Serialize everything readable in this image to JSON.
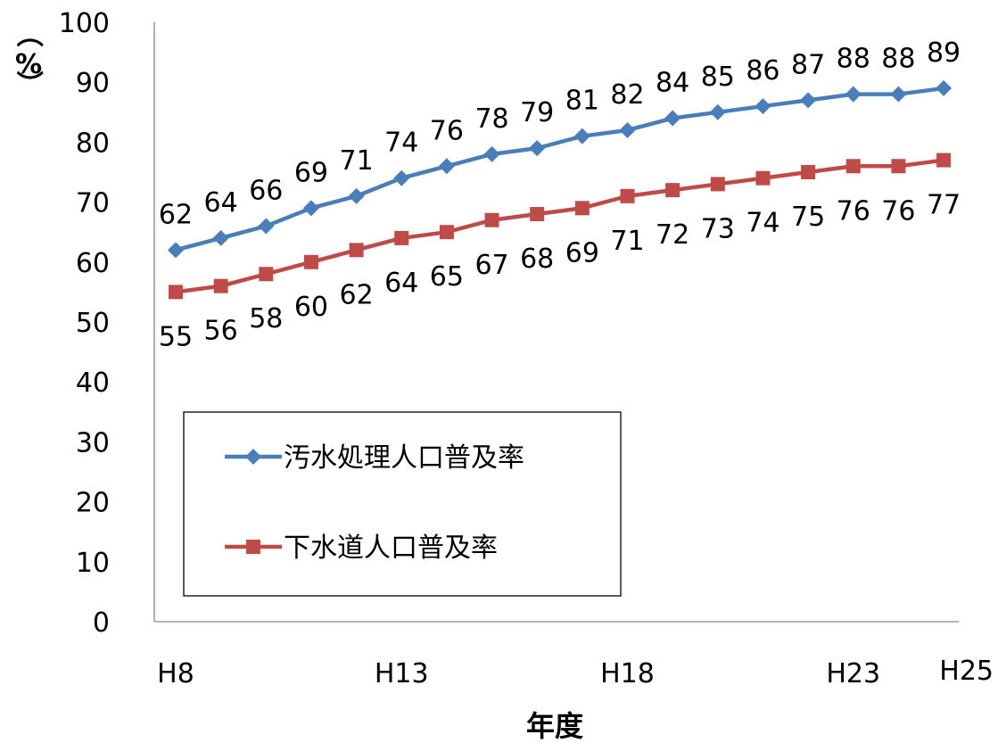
{
  "chart_data": {
    "type": "line",
    "categories": [
      "H8",
      "H9",
      "H10",
      "H11",
      "H12",
      "H13",
      "H14",
      "H15",
      "H16",
      "H17",
      "H18",
      "H19",
      "H20",
      "H21",
      "H22",
      "H23",
      "H24",
      "H25"
    ],
    "x_tick_labels": [
      "H8",
      "H13",
      "H18",
      "H23",
      "H25"
    ],
    "series": [
      {
        "name": "汚水処理人口普及率",
        "color": "#4a7ebb",
        "marker": "diamond",
        "values": [
          62,
          64,
          66,
          69,
          71,
          74,
          76,
          78,
          79,
          81,
          82,
          84,
          85,
          86,
          87,
          88,
          88,
          89
        ]
      },
      {
        "name": "下水道人口普及率",
        "color": "#be4b48",
        "marker": "square",
        "values": [
          55,
          56,
          58,
          60,
          62,
          64,
          65,
          67,
          68,
          69,
          71,
          72,
          73,
          74,
          75,
          76,
          76,
          77
        ]
      }
    ],
    "xlabel": "年度",
    "ylabel": "（%）",
    "ylim": [
      0,
      100
    ],
    "yticks": [
      0,
      10,
      20,
      30,
      40,
      50,
      60,
      70,
      80,
      90,
      100
    ],
    "grid": false,
    "legend_position": "bottom-left"
  }
}
